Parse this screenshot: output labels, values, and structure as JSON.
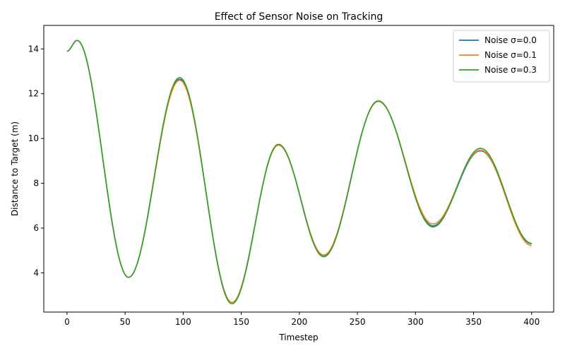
{
  "chart_data": {
    "type": "line",
    "title": "Effect of Sensor Noise on Tracking",
    "xlabel": "Timestep",
    "ylabel": "Distance to Target (m)",
    "xlim": [
      -20,
      419
    ],
    "ylim": [
      2.25,
      15.05
    ],
    "xticks": [
      0,
      50,
      100,
      150,
      200,
      250,
      300,
      350,
      400
    ],
    "yticks": [
      4,
      6,
      8,
      10,
      12,
      14
    ],
    "grid": false,
    "legend_position": "top-right",
    "colors": [
      "#1f77b4",
      "#ff7f0e",
      "#2ca02c"
    ],
    "series": [
      {
        "name": "Noise σ=0.0",
        "x": [
          0,
          8.7,
          53,
          97,
          142,
          182,
          221,
          268,
          315,
          356,
          400
        ],
        "y": [
          13.9,
          14.38,
          3.8,
          12.65,
          2.68,
          9.72,
          4.78,
          11.66,
          6.1,
          9.45,
          5.3
        ]
      },
      {
        "name": "Noise σ=0.1",
        "x": [
          0,
          8.7,
          53,
          97,
          142,
          182,
          221,
          268,
          315,
          356,
          400
        ],
        "y": [
          13.9,
          14.38,
          3.8,
          12.6,
          2.68,
          9.7,
          4.8,
          11.66,
          6.18,
          9.48,
          5.22
        ]
      },
      {
        "name": "Noise σ=0.3",
        "x": [
          0,
          8.7,
          53,
          97,
          142,
          182,
          221,
          268,
          315,
          356,
          400
        ],
        "y": [
          13.9,
          14.38,
          3.8,
          12.72,
          2.62,
          9.74,
          4.72,
          11.68,
          6.05,
          9.56,
          5.32
        ]
      }
    ]
  }
}
